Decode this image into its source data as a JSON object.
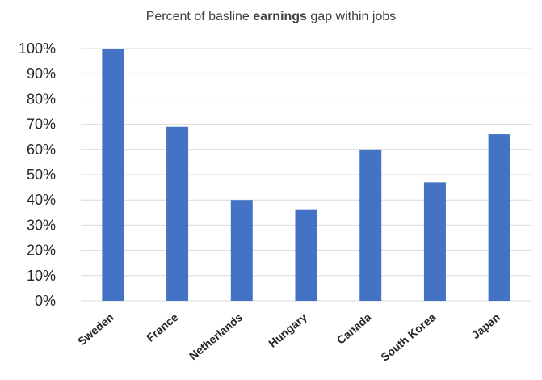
{
  "chart_data": {
    "type": "bar",
    "title_parts": {
      "before": "Percent of basline ",
      "bold": "earnings",
      "after": " gap within jobs"
    },
    "categories": [
      "Sweden",
      "France",
      "Netherlands",
      "Hungary",
      "Canada",
      "South Korea",
      "Japan"
    ],
    "values": [
      100,
      69,
      40,
      36,
      60,
      47,
      66
    ],
    "ylim": [
      0,
      100
    ],
    "yticks": [
      "0%",
      "10%",
      "20%",
      "30%",
      "40%",
      "50%",
      "60%",
      "70%",
      "80%",
      "90%",
      "100%"
    ],
    "xlabel": "",
    "ylabel": "",
    "grid": true,
    "legend": "none",
    "colors": {
      "bar": "#4472C4",
      "grid": "#D9D9D9",
      "title": "#404040",
      "text": "#262626"
    }
  }
}
